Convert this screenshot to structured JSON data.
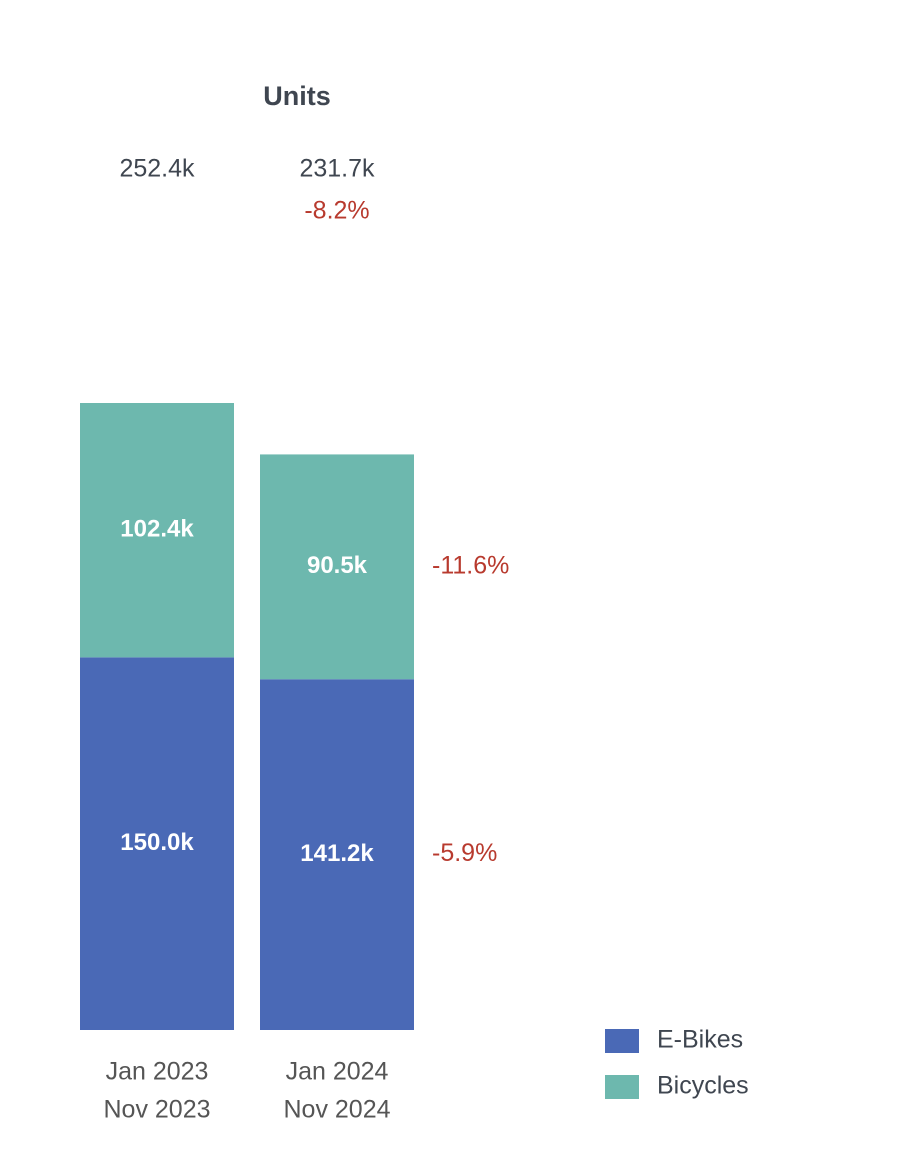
{
  "chart_data": {
    "type": "stacked-bar",
    "title": "Units",
    "categories": [
      [
        "Jan 2023",
        "Nov 2023"
      ],
      [
        "Jan 2024",
        "Nov 2024"
      ]
    ],
    "totals": [
      252400,
      231700
    ],
    "totals_labels": [
      "252.4k",
      "231.7k"
    ],
    "total_change": -8.2,
    "total_change_label": "-8.2%",
    "series": [
      {
        "name": "E-Bikes",
        "color": "#4a69b6",
        "values": [
          150000,
          141200
        ],
        "value_labels": [
          "150.0k",
          "141.2k"
        ],
        "change": -5.9,
        "change_label": "-5.9%"
      },
      {
        "name": "Bicycles",
        "color": "#6db8ae",
        "values": [
          102400,
          90500
        ],
        "value_labels": [
          "102.4k",
          "90.5k"
        ],
        "change": -11.6,
        "change_label": "-11.6%"
      }
    ]
  }
}
